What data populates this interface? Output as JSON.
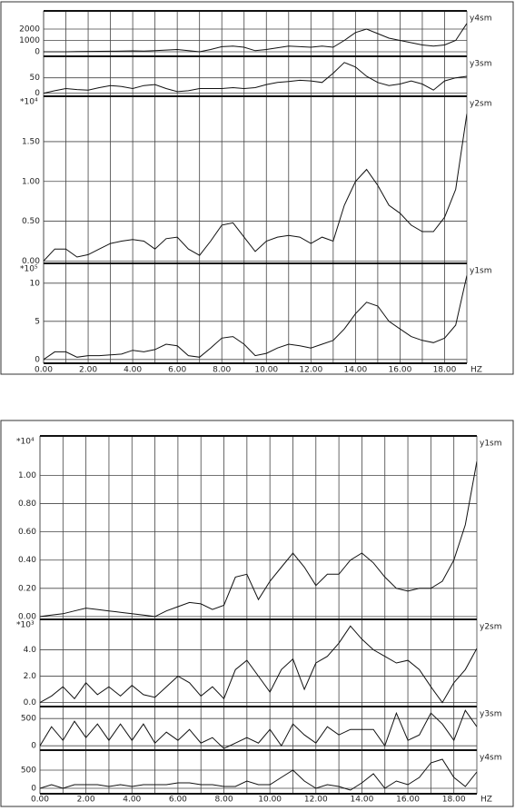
{
  "chart_data": [
    {
      "type": "line",
      "x": [
        0,
        0.5,
        1,
        1.5,
        2,
        2.5,
        3,
        3.5,
        4,
        4.5,
        5,
        5.5,
        6,
        6.5,
        7,
        7.5,
        8,
        8.5,
        9,
        9.5,
        10,
        10.5,
        11,
        11.5,
        12,
        12.5,
        13,
        13.5,
        14,
        14.5,
        15,
        15.5,
        16,
        16.5,
        17,
        17.5,
        18,
        18.5,
        19
      ],
      "xlim": [
        0,
        19
      ],
      "xticks": [
        {
          "value": 0,
          "label": "0.00"
        },
        {
          "value": 2,
          "label": "2.00"
        },
        {
          "value": 4,
          "label": "4.00"
        },
        {
          "value": 6,
          "label": "6.00"
        },
        {
          "value": 8,
          "label": "8.00"
        },
        {
          "value": 10,
          "label": "10.00"
        },
        {
          "value": 12,
          "label": "12.00"
        },
        {
          "value": 14,
          "label": "14.00"
        },
        {
          "value": 16,
          "label": "16.00"
        },
        {
          "value": 18,
          "label": "18.00"
        }
      ],
      "xgrid": [
        0,
        1,
        2,
        3,
        4,
        5,
        6,
        7,
        8,
        9,
        10,
        11,
        12,
        13,
        14,
        15,
        16,
        17,
        18,
        19
      ],
      "x_unit": "HZ",
      "grid": true,
      "series": [
        {
          "name": "y4sm",
          "color": "#111111",
          "ylim": [
            -400,
            3600
          ],
          "yticks": [
            0,
            1000,
            2000
          ],
          "values": [
            0,
            0,
            0,
            20,
            30,
            40,
            50,
            60,
            80,
            60,
            100,
            150,
            200,
            100,
            0,
            200,
            450,
            500,
            400,
            100,
            200,
            350,
            500,
            450,
            400,
            500,
            400,
            1000,
            1700,
            2000,
            1600,
            1200,
            1000,
            800,
            600,
            500,
            600,
            1000,
            2500
          ]
        },
        {
          "name": "y3sm",
          "color": "#111111",
          "ylim": [
            -10,
            120
          ],
          "yticks": [
            0,
            50
          ],
          "values": [
            0,
            8,
            15,
            12,
            10,
            18,
            25,
            22,
            15,
            25,
            28,
            15,
            5,
            8,
            15,
            15,
            15,
            18,
            15,
            18,
            28,
            35,
            38,
            42,
            40,
            35,
            65,
            100,
            85,
            55,
            35,
            25,
            30,
            40,
            30,
            10,
            40,
            50,
            55
          ]
        },
        {
          "name": "y2sm",
          "color": "#111111",
          "scale_label": "*10⁴",
          "ylim": [
            -0.03,
            2.07
          ],
          "yticks": [
            {
              "value": 0,
              "label": "0.00"
            },
            {
              "value": 0.5,
              "label": "0.50"
            },
            {
              "value": 1,
              "label": "1.00"
            },
            {
              "value": 1.5,
              "label": "1.50"
            }
          ],
          "values": [
            0,
            0.15,
            0.15,
            0.05,
            0.08,
            0.15,
            0.22,
            0.25,
            0.27,
            0.25,
            0.15,
            0.28,
            0.3,
            0.15,
            0.07,
            0.25,
            0.45,
            0.48,
            0.3,
            0.12,
            0.25,
            0.3,
            0.32,
            0.3,
            0.22,
            0.3,
            0.25,
            0.7,
            1.0,
            1.15,
            0.95,
            0.7,
            0.6,
            0.45,
            0.37,
            0.37,
            0.55,
            0.9,
            1.85
          ]
        },
        {
          "name": "y1sm",
          "color": "#111111",
          "scale_label": "*10⁵",
          "ylim": [
            -0.5,
            12.6
          ],
          "yticks": [
            0,
            5,
            10
          ],
          "values": [
            0,
            1,
            1,
            0.3,
            0.5,
            0.5,
            0.6,
            0.7,
            1.2,
            1,
            1.3,
            2,
            1.8,
            0.5,
            0.3,
            1.5,
            2.8,
            3,
            2,
            0.5,
            0.8,
            1.5,
            2,
            1.8,
            1.5,
            2,
            2.5,
            4,
            6,
            7.5,
            7,
            5,
            4,
            3,
            2.5,
            2.2,
            2.8,
            4.5,
            11
          ]
        }
      ]
    },
    {
      "type": "line",
      "x": [
        0,
        0.5,
        1,
        1.5,
        2,
        2.5,
        3,
        3.5,
        4,
        4.5,
        5,
        5.5,
        6,
        6.5,
        7,
        7.5,
        8,
        8.5,
        9,
        9.5,
        10,
        10.5,
        11,
        11.5,
        12,
        12.5,
        13,
        13.5,
        14,
        14.5,
        15,
        15.5,
        16,
        16.5,
        17,
        17.5,
        18,
        18.5,
        19
      ],
      "xlim": [
        0,
        19
      ],
      "xticks": [
        {
          "value": 0,
          "label": "0.00"
        },
        {
          "value": 2,
          "label": "2.00"
        },
        {
          "value": 4,
          "label": "4.00"
        },
        {
          "value": 6,
          "label": "6.00"
        },
        {
          "value": 8,
          "label": "8.00"
        },
        {
          "value": 10,
          "label": "10.00"
        },
        {
          "value": 12,
          "label": "12.00"
        },
        {
          "value": 14,
          "label": "14.00"
        },
        {
          "value": 16,
          "label": "16.00"
        },
        {
          "value": 18,
          "label": "18.00"
        }
      ],
      "xgrid": [
        0,
        1,
        2,
        3,
        4,
        5,
        6,
        7,
        8,
        9,
        10,
        11,
        12,
        13,
        14,
        15,
        16,
        17,
        18,
        19
      ],
      "x_unit": "HZ",
      "grid": true,
      "series": [
        {
          "name": "y1sm",
          "color": "#111111",
          "scale_label": "*10⁴",
          "ylim": [
            -0.02,
            1.28
          ],
          "yticks": [
            {
              "value": 0,
              "label": "0.00"
            },
            {
              "value": 0.2,
              "label": "0.20"
            },
            {
              "value": 0.4,
              "label": "0.40"
            },
            {
              "value": 0.6,
              "label": "0.60"
            },
            {
              "value": 0.8,
              "label": "0.80"
            },
            {
              "value": 1,
              "label": "1.00"
            }
          ],
          "values": [
            0,
            0.01,
            0.02,
            0.04,
            0.06,
            0.05,
            0.04,
            0.03,
            0.02,
            0.01,
            0,
            0.04,
            0.07,
            0.1,
            0.09,
            0.05,
            0.08,
            0.28,
            0.3,
            0.12,
            0.25,
            0.35,
            0.45,
            0.35,
            0.22,
            0.3,
            0.3,
            0.4,
            0.45,
            0.38,
            0.28,
            0.2,
            0.18,
            0.2,
            0.2,
            0.25,
            0.4,
            0.65,
            1.1
          ]
        },
        {
          "name": "y2sm",
          "color": "#111111",
          "scale_label": "*10³",
          "ylim": [
            -0.3,
            6.3
          ],
          "yticks": [
            {
              "value": 0,
              "label": "0.0"
            },
            {
              "value": 2,
              "label": "2.0"
            },
            {
              "value": 4,
              "label": "4.0"
            }
          ],
          "values": [
            0,
            0.5,
            1.2,
            0.3,
            1.5,
            0.6,
            1.2,
            0.5,
            1.3,
            0.6,
            0.4,
            1.2,
            2,
            1.5,
            0.5,
            1.2,
            0.3,
            2.5,
            3.2,
            2,
            0.8,
            2.5,
            3.3,
            1,
            3,
            3.5,
            4.5,
            5.8,
            4.8,
            4,
            3.5,
            3,
            3.2,
            2.5,
            1.2,
            0,
            1.5,
            2.5,
            4.1
          ]
        },
        {
          "name": "y3sm",
          "color": "#111111",
          "ylim": [
            -80,
            720
          ],
          "yticks": [
            0,
            500
          ],
          "values": [
            0,
            350,
            100,
            450,
            150,
            400,
            100,
            400,
            100,
            400,
            50,
            250,
            100,
            300,
            50,
            150,
            -50,
            50,
            150,
            50,
            300,
            0,
            400,
            200,
            50,
            350,
            200,
            300,
            300,
            300,
            0,
            600,
            100,
            200,
            600,
            400,
            100,
            650,
            350
          ]
        },
        {
          "name": "y4sm",
          "color": "#111111",
          "ylim": [
            -150,
            1050
          ],
          "yticks": [
            0,
            500
          ],
          "values": [
            0,
            100,
            0,
            100,
            100,
            100,
            50,
            100,
            50,
            100,
            100,
            100,
            150,
            150,
            100,
            100,
            50,
            50,
            200,
            100,
            100,
            300,
            500,
            200,
            0,
            100,
            50,
            -50,
            150,
            400,
            0,
            200,
            100,
            300,
            700,
            800,
            300,
            50,
            450
          ]
        }
      ]
    }
  ]
}
